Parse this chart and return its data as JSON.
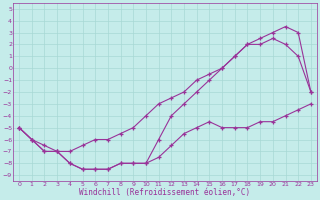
{
  "xlabel": "Windchill (Refroidissement éolien,°C)",
  "bg_color": "#c5ecea",
  "line_color": "#993399",
  "grid_color": "#a8d8d5",
  "xlim": [
    -0.5,
    23.5
  ],
  "ylim": [
    -9.5,
    5.5
  ],
  "xticks": [
    0,
    1,
    2,
    3,
    4,
    5,
    6,
    7,
    8,
    9,
    10,
    11,
    12,
    13,
    14,
    15,
    16,
    17,
    18,
    19,
    20,
    21,
    22,
    23
  ],
  "yticks": [
    5,
    4,
    3,
    2,
    1,
    0,
    -1,
    -2,
    -3,
    -4,
    -5,
    -6,
    -7,
    -8,
    -9
  ],
  "line1_x": [
    0,
    1,
    2,
    3,
    4,
    5,
    6,
    7,
    8,
    9,
    10,
    11,
    12,
    13,
    14,
    15,
    16,
    17,
    18,
    19,
    20,
    21,
    22,
    23
  ],
  "line1_y": [
    -5,
    -6,
    -7,
    -7,
    -8,
    -8.5,
    -8.5,
    -8.5,
    -8,
    -8,
    -8,
    -7.5,
    -6.5,
    -5.5,
    -5,
    -4.5,
    -5,
    -5,
    -5,
    -4.5,
    -4.5,
    -4,
    -3.5,
    -3
  ],
  "line2_x": [
    0,
    1,
    2,
    3,
    4,
    5,
    6,
    7,
    8,
    9,
    10,
    11,
    12,
    13,
    14,
    15,
    16,
    17,
    18,
    19,
    20,
    21,
    22,
    23
  ],
  "line2_y": [
    -5,
    -6,
    -7,
    -7,
    -8,
    -8.5,
    -8.5,
    -8.5,
    -8,
    -8,
    -8,
    -6,
    -4,
    -3,
    -2,
    -1,
    0,
    1,
    2,
    2,
    2.5,
    2,
    1,
    -2
  ],
  "line3_x": [
    0,
    1,
    2,
    3,
    4,
    5,
    6,
    7,
    8,
    9,
    10,
    11,
    12,
    13,
    14,
    15,
    16,
    17,
    18,
    19,
    20,
    21,
    22,
    23
  ],
  "line3_y": [
    -5,
    -6,
    -6.5,
    -7,
    -7,
    -6.5,
    -6,
    -6,
    -5.5,
    -5,
    -4,
    -3,
    -2.5,
    -2,
    -1,
    -0.5,
    0,
    1,
    2,
    2.5,
    3,
    3.5,
    3,
    -2
  ]
}
